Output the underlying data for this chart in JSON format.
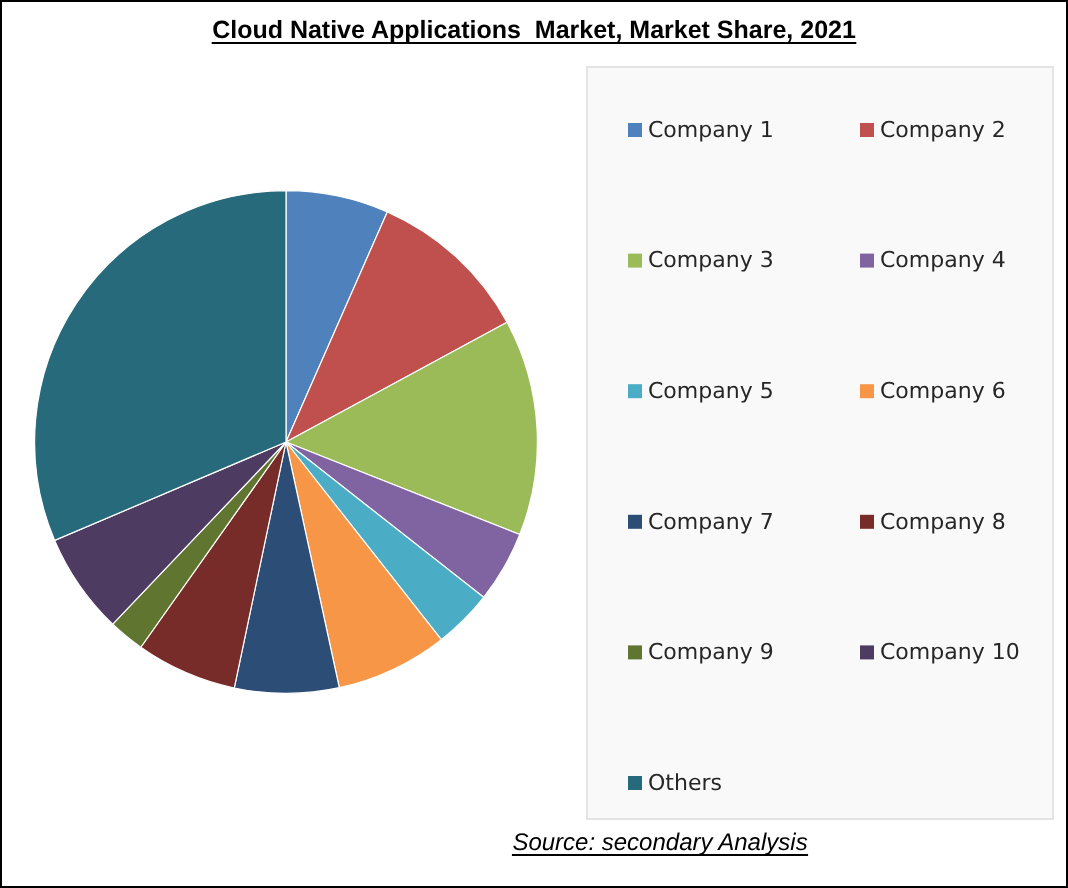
{
  "chart_data": {
    "type": "pie",
    "title": "Cloud Native Applications  Market, Market Share, 2021",
    "categories": [
      "Company 1",
      "Company 2",
      "Company 3",
      "Company 4",
      "Company 5",
      "Company 6",
      "Company 7",
      "Company 8",
      "Company 9",
      "Company 10",
      "Others"
    ],
    "values": [
      6.6,
      10.5,
      13.9,
      4.6,
      3.8,
      7.2,
      6.7,
      6.5,
      2.3,
      6.5,
      31.4
    ],
    "colors": [
      "#4f81bd",
      "#c0504d",
      "#9bbb59",
      "#8064a2",
      "#4bacc6",
      "#f79646",
      "#2c4d75",
      "#772c2a",
      "#5f7530",
      "#4d3b62",
      "#276a7c"
    ],
    "legend": "right",
    "annotations": [
      "Source: secondary Analysis"
    ]
  }
}
